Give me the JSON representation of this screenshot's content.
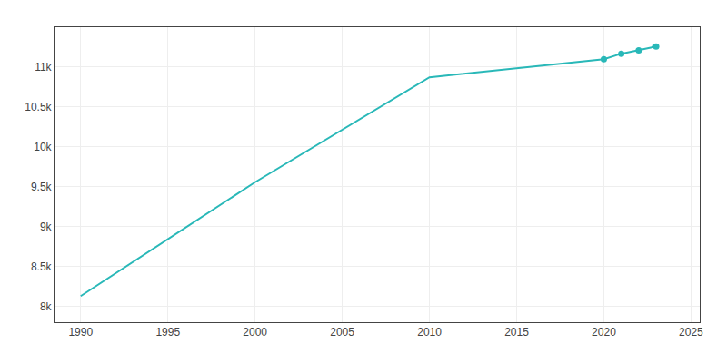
{
  "chart_data": {
    "type": "line",
    "x": [
      1990,
      2000,
      2010,
      2015,
      2020,
      2021,
      2022,
      2023
    ],
    "series": [
      {
        "type": "line",
        "color": "#29b8b8",
        "values": [
          8127,
          9556,
          10871,
          10988,
          11099,
          11168,
          11210,
          11258
        ]
      },
      {
        "type": "scatter",
        "marker": "circle",
        "color": "#29b8b8",
        "values": [
          null,
          null,
          null,
          null,
          11099,
          11168,
          11210,
          11258
        ]
      }
    ],
    "xlim": [
      1988.5,
      2025.5
    ],
    "ylim": [
      7800,
      11500
    ],
    "xticks": [
      1990,
      1995,
      2000,
      2005,
      2010,
      2015,
      2020,
      2025
    ],
    "yticks": [
      {
        "value": 8000,
        "label": "8k"
      },
      {
        "value": 8500,
        "label": "8.5k"
      },
      {
        "value": 9000,
        "label": "9k"
      },
      {
        "value": 9500,
        "label": "9.5k"
      },
      {
        "value": 10000,
        "label": "10k"
      },
      {
        "value": 10500,
        "label": "10.5k"
      },
      {
        "value": 11000,
        "label": "11k"
      }
    ],
    "grid": true
  }
}
